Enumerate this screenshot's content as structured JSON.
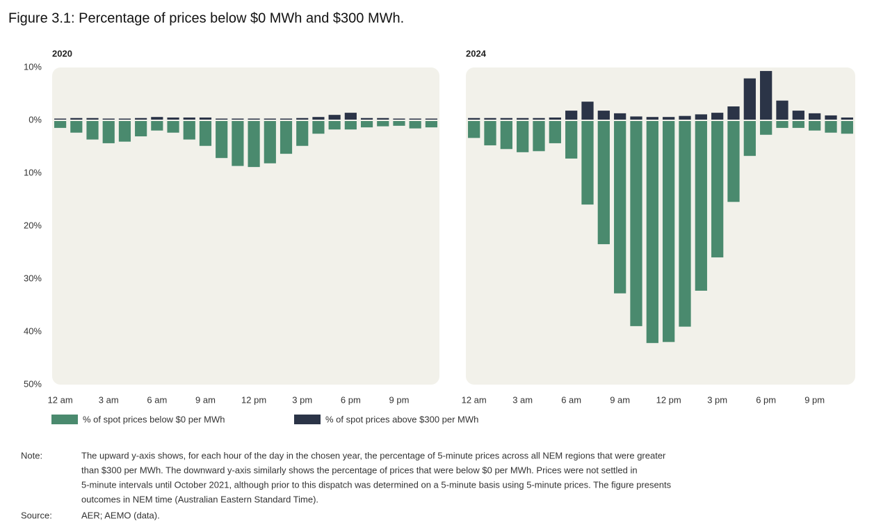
{
  "title": "Figure 3.1: Percentage of prices below $0 MWh and $300 MWh.",
  "chart_data": [
    {
      "type": "bar",
      "stacked": true,
      "subtitle": "2020",
      "categories": [
        "12 am",
        null,
        null,
        "3 am",
        null,
        null,
        "6 am",
        null,
        null,
        "9 am",
        null,
        null,
        "12 pm",
        null,
        null,
        "3 pm",
        null,
        null,
        "6 pm",
        null,
        null,
        "9 pm",
        null,
        null
      ],
      "series": [
        {
          "name": "% of spot prices below $0 per MWh",
          "color": "#4a8a6e",
          "values": [
            -1.3,
            -2.2,
            -3.5,
            -4.2,
            -3.9,
            -2.9,
            -1.8,
            -2.2,
            -3.5,
            -4.7,
            -7,
            -8.5,
            -8.7,
            -8,
            -6.2,
            -4.7,
            -2.4,
            -1.6,
            -1.6,
            -1.2,
            -1,
            -0.9,
            -1.4,
            -1.2
          ]
        },
        {
          "name": "% of spot prices above $300 per MWh",
          "color": "#2b3447",
          "values": [
            0.2,
            0.3,
            0.3,
            0.2,
            0.2,
            0.3,
            0.5,
            0.4,
            0.4,
            0.4,
            0.2,
            0.2,
            0.2,
            0.2,
            0.2,
            0.3,
            0.5,
            0.9,
            1.3,
            0.3,
            0.3,
            0.2,
            0.2,
            0.2
          ]
        }
      ],
      "ylim": [
        -50,
        10
      ],
      "yticks": [
        {
          "value": 10,
          "label": "10%"
        },
        {
          "value": 0,
          "label": "0%"
        },
        {
          "value": -10,
          "label": "10%"
        },
        {
          "value": -20,
          "label": "20%"
        },
        {
          "value": -30,
          "label": "30%"
        },
        {
          "value": -40,
          "label": "40%"
        },
        {
          "value": -50,
          "label": "50%"
        }
      ],
      "grid": false
    },
    {
      "type": "bar",
      "stacked": true,
      "subtitle": "2024",
      "categories": [
        "12 am",
        null,
        null,
        "3 am",
        null,
        null,
        "6 am",
        null,
        null,
        "9 am",
        null,
        null,
        "12 pm",
        null,
        null,
        "3 pm",
        null,
        null,
        "6 pm",
        null,
        null,
        "9 pm",
        null,
        null
      ],
      "series": [
        {
          "name": "% of spot prices below $0 per MWh",
          "color": "#4a8a6e",
          "values": [
            -3.2,
            -4.6,
            -5.3,
            -5.9,
            -5.7,
            -4.2,
            -7.1,
            -15.8,
            -23.3,
            -32.6,
            -38.8,
            -42,
            -41.8,
            -38.9,
            -32.1,
            -25.8,
            -15.3,
            -6.6,
            -2.6,
            -1.3,
            -1.3,
            -1.8,
            -2.2,
            -2.4
          ]
        },
        {
          "name": "% of spot prices above $300 per MWh",
          "color": "#2b3447",
          "values": [
            0.3,
            0.3,
            0.3,
            0.3,
            0.3,
            0.4,
            1.7,
            3.4,
            1.7,
            1.2,
            0.6,
            0.5,
            0.5,
            0.7,
            1,
            1.3,
            2.5,
            7.8,
            9.2,
            3.6,
            1.7,
            1.2,
            0.8,
            0.4
          ]
        }
      ],
      "ylim": [
        -50,
        10
      ],
      "grid": false
    }
  ],
  "note_label": "Note:",
  "note": [
    "The upward y-axis shows, for each hour of the day in the chosen year, the percentage of 5-minute prices across all NEM regions that were greater",
    "than $300 per MWh. The downward y-axis similarly shows the percentage of prices that were below $0 per MWh. Prices were not settled in",
    "5-minute intervals until October 2021, although prior to this dispatch was determined on a 5-minute basis using 5-minute prices. The figure presents",
    "outcomes in NEM time (Australian Eastern Standard Time)."
  ],
  "source_label": "Source:",
  "source": "AER; AEMO (data)."
}
